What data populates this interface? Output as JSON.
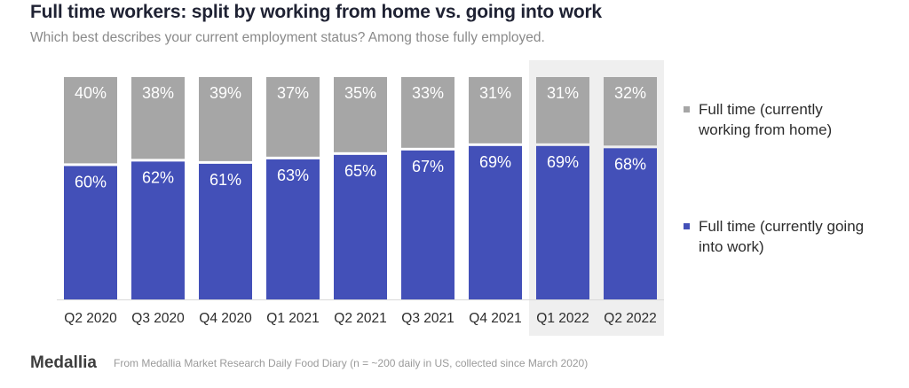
{
  "header": {
    "title": "Full time workers: split by working from home vs. going into work",
    "subtitle": "Which best describes your current employment status?  Among those fully employed."
  },
  "chart_data": {
    "type": "bar",
    "stacked": true,
    "categories": [
      "Q2 2020",
      "Q3 2020",
      "Q4 2020",
      "Q1 2021",
      "Q2 2021",
      "Q3 2021",
      "Q4 2021",
      "Q1 2022",
      "Q2 2022"
    ],
    "series": [
      {
        "name": "Full time (currently going into work)",
        "color": "#4350b8",
        "values": [
          60,
          62,
          61,
          63,
          65,
          67,
          69,
          69,
          68
        ],
        "labels": [
          "60%",
          "62%",
          "61%",
          "63%",
          "65%",
          "67%",
          "69%",
          "69%",
          "68%"
        ]
      },
      {
        "name": "Full time (currently working from home)",
        "color": "#a6a6a6",
        "values": [
          40,
          38,
          39,
          37,
          35,
          33,
          31,
          31,
          32
        ],
        "labels": [
          "40%",
          "38%",
          "39%",
          "37%",
          "35%",
          "33%",
          "31%",
          "31%",
          "32%"
        ]
      }
    ],
    "highlight_categories": [
      "Q1 2022",
      "Q2 2022"
    ],
    "ylim": [
      0,
      100
    ],
    "grid": false
  },
  "legend": {
    "items": [
      {
        "label": "Full time (currently working from home)",
        "color": "#a6a6a6"
      },
      {
        "label": "Full time (currently going into work)",
        "color": "#4350b8"
      }
    ]
  },
  "footer": {
    "brand": "Medallia",
    "source": "From Medallia Market Research Daily Food Diary (n = ~200 daily in US, collected since March 2020)"
  }
}
